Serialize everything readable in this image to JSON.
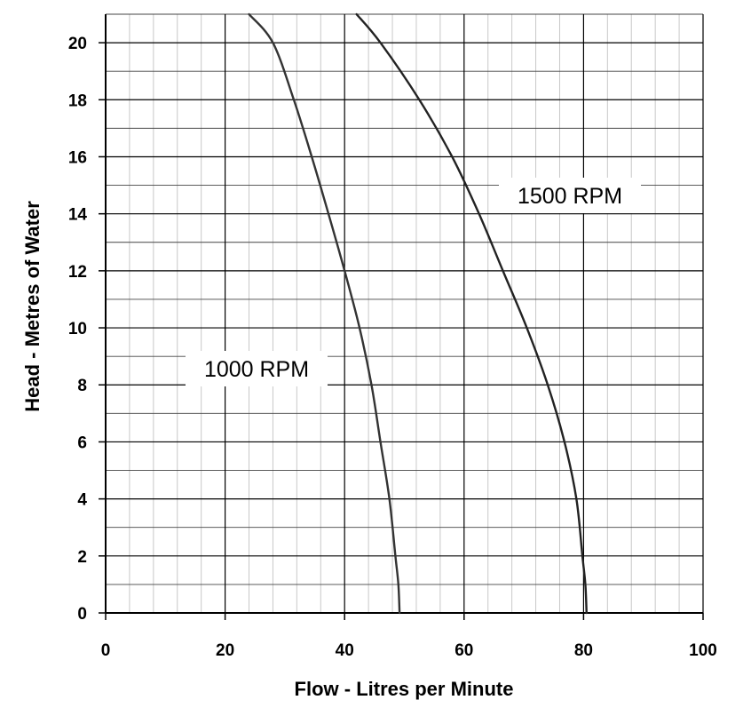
{
  "chart_data": {
    "type": "line",
    "title": "",
    "xlabel": "Flow - Litres per Minute",
    "ylabel": "Head - Metres of Water",
    "xlim": [
      0,
      100
    ],
    "ylim": [
      0,
      21
    ],
    "x_ticks": [
      "0",
      "20",
      "40",
      "60",
      "80",
      "100"
    ],
    "y_ticks": [
      "0",
      "2",
      "4",
      "6",
      "8",
      "10",
      "12",
      "14",
      "16",
      "18",
      "20"
    ],
    "grid": true,
    "legend": "none",
    "series": [
      {
        "name": "1000 RPM",
        "color": "#333333",
        "x": [
          49.2,
          49.0,
          48.5,
          47.5,
          46.0,
          44.5,
          42.5,
          40.0,
          37.3,
          34.5,
          31.5,
          28.0,
          24.0
        ],
        "y": [
          0,
          1,
          2,
          4,
          6,
          8,
          10,
          12,
          14,
          16,
          18,
          20,
          21
        ]
      },
      {
        "name": "1500 RPM",
        "color": "#222222",
        "x": [
          80.5,
          80.3,
          79.8,
          78.8,
          76.8,
          74.0,
          70.5,
          66.5,
          62.5,
          58.0,
          52.5,
          46.0,
          42.0
        ],
        "y": [
          0,
          1,
          2,
          4,
          6,
          8,
          10,
          12,
          14,
          16,
          18,
          20,
          21
        ]
      }
    ]
  }
}
